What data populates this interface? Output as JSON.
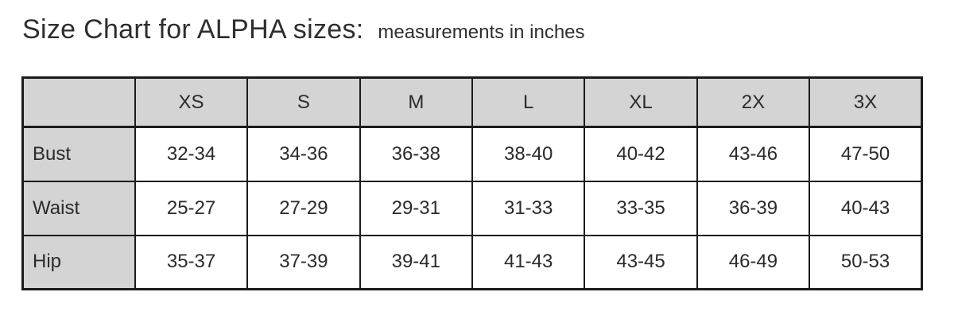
{
  "title": {
    "main": "Size Chart for ALPHA sizes:",
    "sub": "measurements in inches"
  },
  "table": {
    "columns": [
      "",
      "XS",
      "S",
      "M",
      "L",
      "XL",
      "2X",
      "3X"
    ],
    "rows": [
      {
        "label": "Bust",
        "values": [
          "32-34",
          "34-36",
          "36-38",
          "38-40",
          "40-42",
          "43-46",
          "47-50"
        ]
      },
      {
        "label": "Waist",
        "values": [
          "25-27",
          "27-29",
          "29-31",
          "31-33",
          "33-35",
          "36-39",
          "40-43"
        ]
      },
      {
        "label": "Hip",
        "values": [
          "35-37",
          "37-39",
          "39-41",
          "41-43",
          "43-45",
          "46-49",
          "50-53"
        ]
      }
    ]
  },
  "colors": {
    "header_bg": "#d4d4d4",
    "cell_bg": "#ffffff",
    "border": "#1b1b1b",
    "text": "#2b2b2b",
    "page_bg": "#ffffff"
  },
  "chart_data": {
    "type": "table",
    "title": "Size Chart for ALPHA sizes: measurements in inches",
    "unit": "inches",
    "columns": [
      "",
      "XS",
      "S",
      "M",
      "L",
      "XL",
      "2X",
      "3X"
    ],
    "rows": [
      [
        "Bust",
        "32-34",
        "34-36",
        "36-38",
        "38-40",
        "40-42",
        "43-46",
        "47-50"
      ],
      [
        "Waist",
        "25-27",
        "27-29",
        "29-31",
        "31-33",
        "33-35",
        "36-39",
        "40-43"
      ],
      [
        "Hip",
        "35-37",
        "37-39",
        "39-41",
        "41-43",
        "43-45",
        "46-49",
        "50-53"
      ]
    ]
  }
}
